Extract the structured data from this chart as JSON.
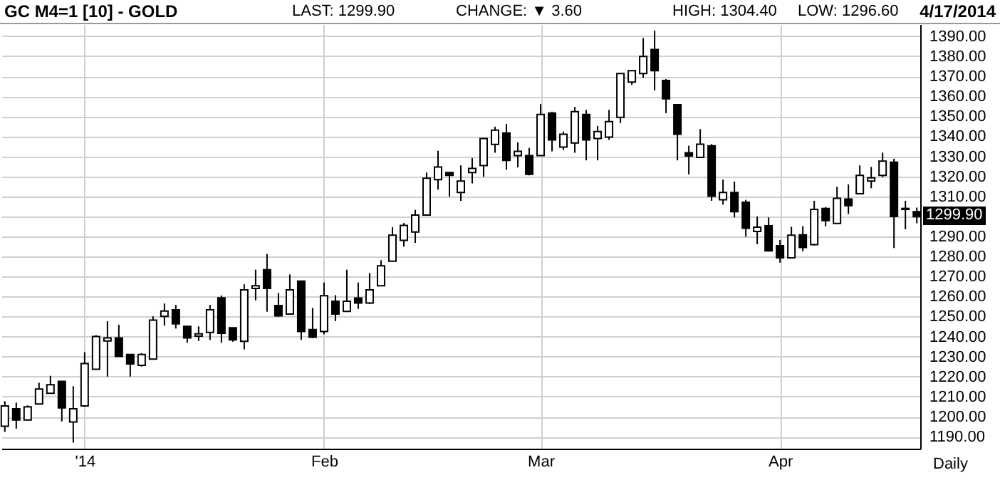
{
  "chart_data": {
    "type": "candlestick",
    "title": "GC M4=1 [10] - GOLD",
    "annotations": [
      "LAST: 1299.90",
      "CHANGE: ▼ 3.60",
      "HIGH: 1304.40",
      "LOW: 1296.60",
      "4/17/2014",
      "1299.90",
      "Daily"
    ],
    "categories": [
      null,
      null,
      null,
      null,
      null,
      null,
      null,
      "'14",
      null,
      null,
      null,
      null,
      null,
      null,
      null,
      null,
      null,
      null,
      null,
      null,
      null,
      null,
      null,
      null,
      null,
      null,
      null,
      null,
      "Feb",
      null,
      null,
      null,
      null,
      null,
      null,
      null,
      null,
      null,
      null,
      null,
      null,
      null,
      null,
      null,
      null,
      null,
      null,
      "Mar",
      null,
      null,
      null,
      null,
      null,
      null,
      null,
      null,
      null,
      null,
      null,
      null,
      null,
      null,
      null,
      null,
      null,
      null,
      null,
      null,
      "Apr",
      null,
      null,
      null,
      null,
      null,
      null,
      null,
      null,
      null,
      null,
      null,
      null
    ],
    "ohlc": [
      [
        1195.2,
        1207.7,
        1192.4,
        1205.3
      ],
      [
        1203.9,
        1207,
        1194,
        1198.3
      ],
      [
        1198.3,
        1205.6,
        1198,
        1204.9
      ],
      [
        1206.3,
        1216.9,
        1206,
        1213.8
      ],
      [
        1211.7,
        1220.4,
        1211.5,
        1215.9
      ],
      [
        1217.6,
        1217.6,
        1197.6,
        1204.4
      ],
      [
        1197.3,
        1215.2,
        1187,
        1203.9
      ],
      [
        1205.3,
        1232.2,
        1205,
        1226.5
      ],
      [
        1223.7,
        1240.7,
        1223.7,
        1240
      ],
      [
        1237.8,
        1247.7,
        1220,
        1239.3
      ],
      [
        1239.3,
        1245.9,
        1230,
        1230.1
      ],
      [
        1231,
        1231,
        1220,
        1226.3
      ],
      [
        1225.6,
        1231.7,
        1225,
        1231
      ],
      [
        1228.7,
        1250.1,
        1228.7,
        1248.2
      ],
      [
        1250.1,
        1256.5,
        1245.4,
        1252.7
      ],
      [
        1253.4,
        1255.8,
        1244,
        1246.3
      ],
      [
        1245.1,
        1245.1,
        1236.9,
        1239.3
      ],
      [
        1240.2,
        1245.1,
        1237.8,
        1241.4
      ],
      [
        1242.1,
        1255.8,
        1238.3,
        1253.4
      ],
      [
        1259.3,
        1260.5,
        1236.9,
        1241.6
      ],
      [
        1244.4,
        1244.4,
        1237.4,
        1238.3
      ],
      [
        1237.6,
        1266.1,
        1233.6,
        1263.3
      ],
      [
        1264,
        1273.4,
        1258.1,
        1265.4
      ],
      [
        1273.4,
        1281.2,
        1252.4,
        1264
      ],
      [
        1255.5,
        1261.8,
        1249.8,
        1250.3
      ],
      [
        1251.2,
        1271,
        1251,
        1263.3
      ],
      [
        1267.7,
        1267.7,
        1238.3,
        1242.5
      ],
      [
        1243.5,
        1254.3,
        1239.2,
        1239.7
      ],
      [
        1242.5,
        1267,
        1241.1,
        1260.4
      ],
      [
        1257.6,
        1260.7,
        1247.7,
        1251.2
      ],
      [
        1252.6,
        1273.4,
        1252.6,
        1257.6
      ],
      [
        1259.2,
        1267,
        1253.8,
        1256.7
      ],
      [
        1256.7,
        1271.7,
        1256.2,
        1263.3
      ],
      [
        1265.4,
        1278.1,
        1265.4,
        1275.3
      ],
      [
        1277.6,
        1294.6,
        1277.6,
        1290.6
      ],
      [
        1288,
        1296.7,
        1284.9,
        1295.5
      ],
      [
        1292.2,
        1303.3,
        1286.8,
        1300.7
      ],
      [
        1300.7,
        1321.9,
        1300.7,
        1319.1
      ],
      [
        1318.4,
        1332.8,
        1313.4,
        1324.7
      ],
      [
        1321.9,
        1321.9,
        1309.9,
        1320.5
      ],
      [
        1312,
        1325.5,
        1307.8,
        1317.7
      ],
      [
        1321.9,
        1329.2,
        1316.5,
        1324
      ],
      [
        1325.4,
        1338.9,
        1319.8,
        1338.9
      ],
      [
        1336,
        1344.8,
        1331.8,
        1343.1
      ],
      [
        1341.7,
        1346.2,
        1323.3,
        1328
      ],
      [
        1330.4,
        1337,
        1324.5,
        1332.5
      ],
      [
        1330.4,
        1334.2,
        1320.5,
        1321
      ],
      [
        1330.4,
        1356.1,
        1330.4,
        1350.9
      ],
      [
        1351.6,
        1352.3,
        1332.5,
        1338.2
      ],
      [
        1334.6,
        1342.4,
        1333.2,
        1341
      ],
      [
        1336.7,
        1354.7,
        1331.8,
        1352.3
      ],
      [
        1350.9,
        1353.2,
        1328,
        1338.2
      ],
      [
        1338.9,
        1345.2,
        1328,
        1342.4
      ],
      [
        1339.6,
        1353.2,
        1338.2,
        1347.4
      ],
      [
        1349.5,
        1371.4,
        1346.6,
        1371.4
      ],
      [
        1367.1,
        1372.8,
        1365.7,
        1372.8
      ],
      [
        1371.4,
        1389.1,
        1369.3,
        1379.9
      ],
      [
        1383.4,
        1392.8,
        1362.9,
        1372.8
      ],
      [
        1367.9,
        1368.6,
        1351.6,
        1358.7
      ],
      [
        1355.8,
        1355.8,
        1328,
        1341
      ],
      [
        1331.8,
        1335.3,
        1321,
        1330.2
      ],
      [
        1329.5,
        1343.6,
        1329.5,
        1336.1
      ],
      [
        1335.3,
        1336.1,
        1307.8,
        1310.1
      ],
      [
        1308.3,
        1318.4,
        1305.9,
        1312
      ],
      [
        1312,
        1317.4,
        1299.5,
        1302.4
      ],
      [
        1307.1,
        1308.3,
        1289.9,
        1294.1
      ],
      [
        1292.5,
        1300,
        1286.1,
        1294.6
      ],
      [
        1295.3,
        1299.5,
        1282.8,
        1282.8
      ],
      [
        1285.4,
        1288.2,
        1276.9,
        1279.3
      ],
      [
        1279.3,
        1294.8,
        1279.3,
        1290.6
      ],
      [
        1290.8,
        1295.1,
        1282.6,
        1284.5
      ],
      [
        1285.9,
        1307.8,
        1285.4,
        1303.5
      ],
      [
        1304,
        1304.7,
        1295.1,
        1297.9
      ],
      [
        1296.5,
        1314.8,
        1296.5,
        1309
      ],
      [
        1308.7,
        1316,
        1301.2,
        1305.4
      ],
      [
        1311.3,
        1325.5,
        1311.3,
        1320.5
      ],
      [
        1317.7,
        1324.7,
        1314.1,
        1319.3
      ],
      [
        1320.5,
        1331.8,
        1319.6,
        1327.6
      ],
      [
        1327.1,
        1328.8,
        1284.2,
        1300
      ],
      [
        1304,
        1307.8,
        1293.6,
        1303.5
      ],
      [
        1302.4,
        1304.4,
        1296.6,
        1299.9
      ]
    ],
    "ylim": [
      1184,
      1396
    ],
    "yticks": [
      {
        "value": 1190,
        "label": "1190.00"
      },
      {
        "value": 1200,
        "label": "1200.00"
      },
      {
        "value": 1210,
        "label": "1210.00"
      },
      {
        "value": 1220,
        "label": "1220.00"
      },
      {
        "value": 1230,
        "label": "1230.00"
      },
      {
        "value": 1240,
        "label": "1240.00"
      },
      {
        "value": 1250,
        "label": "1250.00"
      },
      {
        "value": 1260,
        "label": "1260.00"
      },
      {
        "value": 1270,
        "label": "1270.00"
      },
      {
        "value": 1280,
        "label": "1280.00"
      },
      {
        "value": 1290,
        "label": "1290.00"
      },
      {
        "value": 1300,
        "label": null
      },
      {
        "value": 1310,
        "label": "1310.00"
      },
      {
        "value": 1320,
        "label": "1320.00"
      },
      {
        "value": 1330,
        "label": "1330.00"
      },
      {
        "value": 1340,
        "label": "1340.00"
      },
      {
        "value": 1350,
        "label": "1350.00"
      },
      {
        "value": 1360,
        "label": "1360.00"
      },
      {
        "value": 1370,
        "label": "1370.00"
      },
      {
        "value": 1380,
        "label": "1380.00"
      },
      {
        "value": 1390,
        "label": "1390.00"
      }
    ],
    "grid": true
  }
}
